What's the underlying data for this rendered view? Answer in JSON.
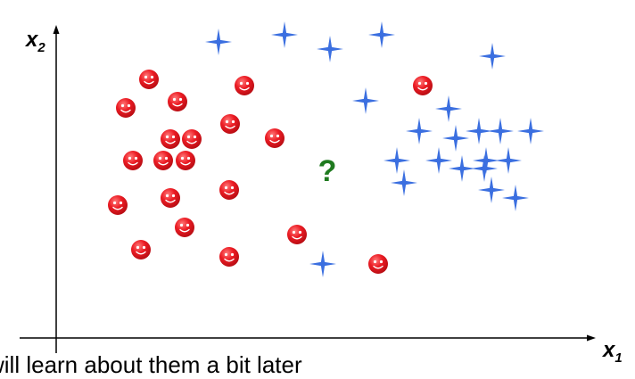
{
  "chart_data": {
    "type": "scatter",
    "xlabel": "x",
    "xlabel_sub": "1",
    "ylabel": "x",
    "ylabel_sub": "2",
    "grid": false,
    "axis_ticks": false,
    "query_marker": "?",
    "query_point": {
      "x": 367,
      "y": 188
    },
    "series": [
      {
        "marker": "smiley",
        "color": "#e8141c",
        "points": [
          {
            "x": 167,
            "y": 290
          },
          {
            "x": 141,
            "y": 258
          },
          {
            "x": 199,
            "y": 265
          },
          {
            "x": 274,
            "y": 283
          },
          {
            "x": 474,
            "y": 283
          },
          {
            "x": 191,
            "y": 223
          },
          {
            "x": 215,
            "y": 223
          },
          {
            "x": 258,
            "y": 240
          },
          {
            "x": 308,
            "y": 224
          },
          {
            "x": 149,
            "y": 199
          },
          {
            "x": 183,
            "y": 199
          },
          {
            "x": 208,
            "y": 199
          },
          {
            "x": 257,
            "y": 166
          },
          {
            "x": 191,
            "y": 157
          },
          {
            "x": 132,
            "y": 149
          },
          {
            "x": 207,
            "y": 124
          },
          {
            "x": 333,
            "y": 116
          },
          {
            "x": 158,
            "y": 99
          },
          {
            "x": 257,
            "y": 91
          },
          {
            "x": 424,
            "y": 83
          }
        ]
      },
      {
        "marker": "star",
        "color": "#3b6fe0",
        "points": [
          {
            "x": 245,
            "y": 332
          },
          {
            "x": 319,
            "y": 340
          },
          {
            "x": 370,
            "y": 324
          },
          {
            "x": 428,
            "y": 340
          },
          {
            "x": 552,
            "y": 316
          },
          {
            "x": 410,
            "y": 266
          },
          {
            "x": 503,
            "y": 257
          },
          {
            "x": 470,
            "y": 232
          },
          {
            "x": 511,
            "y": 224
          },
          {
            "x": 537,
            "y": 232
          },
          {
            "x": 561,
            "y": 232
          },
          {
            "x": 595,
            "y": 232
          },
          {
            "x": 445,
            "y": 199
          },
          {
            "x": 492,
            "y": 199
          },
          {
            "x": 518,
            "y": 190
          },
          {
            "x": 545,
            "y": 199
          },
          {
            "x": 570,
            "y": 199
          },
          {
            "x": 543,
            "y": 190
          },
          {
            "x": 453,
            "y": 174
          },
          {
            "x": 551,
            "y": 166
          },
          {
            "x": 578,
            "y": 157
          },
          {
            "x": 362,
            "y": 83
          }
        ]
      }
    ]
  },
  "caption": "will learn about them a bit later"
}
